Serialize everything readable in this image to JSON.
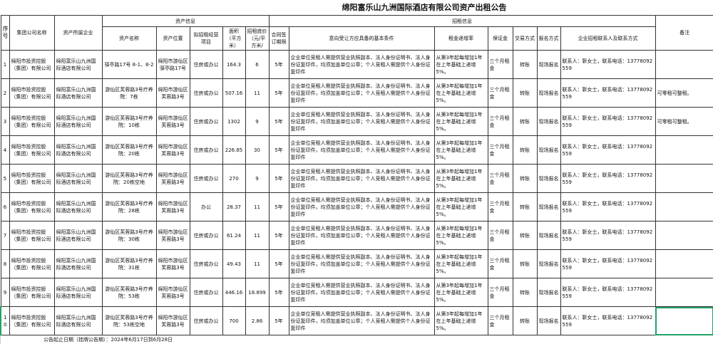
{
  "title": "绵阳富乐山九洲国际酒店有限公司资产出租公告",
  "headers": {
    "seq": "序号",
    "group": "集团公司名称",
    "enterprise": "资产所属企业",
    "asset_info": "资产信息",
    "asset_name": "资产名称",
    "location": "资产位置",
    "project": "拟招租经营项目",
    "area": "面积（平方米）",
    "price": "招租底价（元/平方米/",
    "term": "合同签订期限",
    "lease_info": "招租信息",
    "conditions": "意向受让方应具备的基本条件",
    "increase": "租金递增率",
    "deposit": "保证金",
    "trade": "交易方式",
    "signup": "报名方式",
    "contact": "企业招租联系人及联系方式",
    "remarks": "备注"
  },
  "rows": [
    {
      "seq": "1",
      "group": "绵阳市投资控股（集团）有限公司",
      "enterprise": "绵阳富乐山九洲国际酒店有限公司",
      "asset_name": "驿亭路17号 8-1、8-2",
      "location": "绵阳市游仙区驿亭路17号",
      "project": "住房或办公",
      "area": "164.3",
      "price": "6",
      "term": "5年",
      "conditions": "企业单位竞租人需提供营业执照副本、法人身份证明书、法人身份证复印件，均须加盖单位公章；个人竞租人需提供个人身份证复印件",
      "increase": "从第3年起每增加1年在上年基础上递增5%。",
      "deposit": "三个月租金",
      "trade": "转账",
      "signup": "现场报名",
      "contact": "联系人：靳女士，联系电话：13778092559",
      "remarks": ""
    },
    {
      "seq": "2",
      "group": "绵阳市投资控股（集团）有限公司",
      "enterprise": "绵阳富乐山九洲国际酒店有限公司",
      "asset_name": "游仙区芙蓉路3号疗养院：7栋",
      "location": "绵阳市游仙区芙蓉路3号",
      "project": "住房或办公",
      "area": "507.16",
      "price": "11",
      "term": "5年",
      "conditions": "企业单位竞租人需提供营业执照副本、法人身份证明书、法人身份证复印件，均须加盖单位公章；个人竞租人需提供个人身份证复印件",
      "increase": "从第3年起每增加1年在上年基础上递增5%。",
      "deposit": "三个月租金",
      "trade": "转账",
      "signup": "现场报名",
      "contact": "联系人：靳女士，联系电话：13778092559",
      "remarks": "可零租可整租。"
    },
    {
      "seq": "3",
      "group": "绵阳市投资控股（集团）有限公司",
      "enterprise": "绵阳富乐山九洲国际酒店有限公司",
      "asset_name": "游仙区芙蓉路3号疗养院：10栋",
      "location": "绵阳市游仙区芙蓉路3号",
      "project": "住房或办公",
      "area": "1302",
      "price": "9",
      "term": "5年",
      "conditions": "企业单位竞租人需提供营业执照副本、法人身份证明书、法人身份证复印件，均须加盖单位公章；个人竞租人需提供个人身份证复印件",
      "increase": "从第3年起每增加1年在上年基础上递增5%。",
      "deposit": "三个月租金",
      "trade": "转账",
      "signup": "现场报名",
      "contact": "联系人：靳女士，联系电话：13778092559",
      "remarks": "可零租可整租。"
    },
    {
      "seq": "4",
      "group": "绵阳市投资控股（集团）有限公司",
      "enterprise": "绵阳富乐山九洲国际酒店有限公司",
      "asset_name": "游仙区芙蓉路3号疗养院：20栋",
      "location": "绵阳市游仙区芙蓉路3号",
      "project": "住房或办公",
      "area": "226.85",
      "price": "30",
      "term": "5年",
      "conditions": "企业单位竞租人需提供营业执照副本、法人身份证明书、法人身份证复印件，均须加盖单位公章；个人竞租人需提供个人身份证复印件",
      "increase": "从第3年起每增加1年在上年基础上递增5%。",
      "deposit": "三个月租金",
      "trade": "转账",
      "signup": "现场报名",
      "contact": "联系人：靳女士，联系电话：13778092559",
      "remarks": ""
    },
    {
      "seq": "5",
      "group": "绵阳市投资控股（集团）有限公司",
      "enterprise": "绵阳富乐山九洲国际酒店有限公司",
      "asset_name": "游仙区芙蓉路3号疗养院：20栋空地",
      "location": "绵阳市游仙区芙蓉路3号",
      "project": "住房或办公",
      "area": "270",
      "price": "9",
      "term": "5年",
      "conditions": "企业单位竞租人需提供营业执照副本、法人身份证明书、法人身份证复印件，均须加盖单位公章；个人竞租人需提供个人身份证复印件",
      "increase": "从第3年起每增加1年在上年基础上递增5%。",
      "deposit": "三个月租金",
      "trade": "转账",
      "signup": "现场报名",
      "contact": "联系人：靳女士，联系电话：13778092559",
      "remarks": ""
    },
    {
      "seq": "6",
      "group": "绵阳市投资控股（集团）有限公司",
      "enterprise": "绵阳富乐山九洲国际酒店有限公司",
      "asset_name": "游仙区芙蓉路3号疗养院：28栋",
      "location": "绵阳市游仙区芙蓉路3号",
      "project": "办公",
      "area": "28.37",
      "price": "11",
      "term": "5年",
      "conditions": "企业单位竞租人需提供营业执照副本、法人身份证明书、法人身份证复印件，均须加盖单位公章；个人竞租人需提供个人身份证复印件",
      "increase": "从第3年起每增加1年在上年基础上递增5%。",
      "deposit": "三个月租金",
      "trade": "转账",
      "signup": "现场报名",
      "contact": "联系人：靳女士，联系电话：13778092559",
      "remarks": ""
    },
    {
      "seq": "7",
      "group": "绵阳市投资控股（集团）有限公司",
      "enterprise": "绵阳富乐山九洲国际酒店有限公司",
      "asset_name": "游仙区芙蓉路3号疗养院：30栋",
      "location": "绵阳市游仙区芙蓉路3号",
      "project": "住房或办公",
      "area": "61.24",
      "price": "11",
      "term": "5年",
      "conditions": "企业单位竞租人需提供营业执照副本、法人身份证明书、法人身份证复印件，均须加盖单位公章；个人竞租人需提供个人身份证复印件",
      "increase": "从第3年起每增加1年在上年基础上递增5%。",
      "deposit": "三个月租金",
      "trade": "转账",
      "signup": "现场报名",
      "contact": "联系人：靳女士，联系电话：13778092559",
      "remarks": ""
    },
    {
      "seq": "8",
      "group": "绵阳市投资控股（集团）有限公司",
      "enterprise": "绵阳富乐山九洲国际酒店有限公司",
      "asset_name": "游仙区芙蓉路3号疗养院：31栋",
      "location": "绵阳市游仙区芙蓉路3号",
      "project": "住房或办公",
      "area": "49.43",
      "price": "11",
      "term": "5年",
      "conditions": "企业单位竞租人需提供营业执照副本、法人身份证明书、法人身份证复印件，均须加盖单位公章；个人竞租人需提供个人身份证复印件",
      "increase": "从第3年起每增加1年在上年基础上递增5%。",
      "deposit": "三个月租金",
      "trade": "转账",
      "signup": "现场报名",
      "contact": "联系人：靳女士，联系电话：13778092559",
      "remarks": ""
    },
    {
      "seq": "9",
      "group": "绵阳市投资控股（集团）有限公司",
      "enterprise": "绵阳富乐山九洲国际酒店有限公司",
      "asset_name": "游仙区芙蓉路3号疗养院：53栋",
      "location": "绵阳市游仙区芙蓉路3号",
      "project": "住房或办公",
      "area": "446.16",
      "price": "18.899",
      "term": "5年",
      "conditions": "企业单位竞租人需提供营业执照副本、法人身份证明书、法人身份证复印件，均须加盖单位公章；个人竞租人需提供个人身份证复印件",
      "increase": "从第3年起每增加1年在上年基础上递增5%。",
      "deposit": "三个月租金",
      "trade": "转账",
      "signup": "现场报名",
      "contact": "联系人：靳女士，联系电话：13778092559",
      "remarks": ""
    },
    {
      "seq": "10",
      "group": "绵阳市投资控股（集团）有限公司",
      "enterprise": "绵阳富乐山九洲国际酒店有限公司",
      "asset_name": "游仙区芙蓉路3号疗养院：53栋空地",
      "location": "绵阳市游仙区芙蓉路3号",
      "project": "住房或办公",
      "area": "700",
      "price": "2.86",
      "term": "5年",
      "conditions": "企业单位竞租人需提供营业执照副本、法人身份证明书、法人身份证复印件，均须加盖单位公章；个人竞租人需提供个人身份证复印件",
      "increase": "从第3年起每增加1年在上年基础上递增5%。",
      "deposit": "三个月租金",
      "trade": "转账",
      "signup": "现场报名",
      "contact": "联系人：靳女士，联系电话：13778092559",
      "remarks": ""
    }
  ],
  "footer": "公告起止日期（挂牌公告期）：2024年6月17日到6月28日",
  "colors": {
    "selection": "#21a366",
    "grid": "#333333"
  }
}
